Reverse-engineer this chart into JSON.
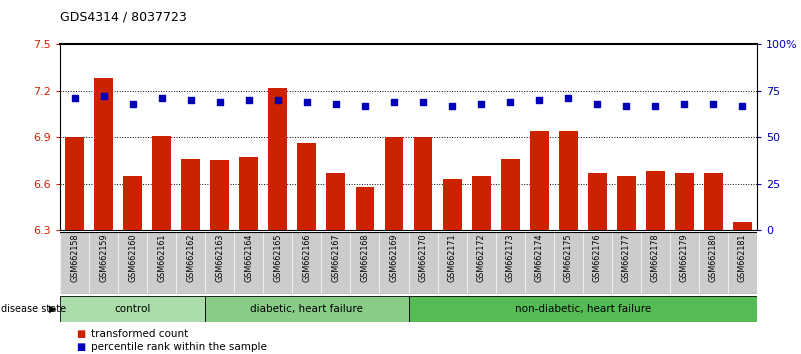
{
  "title": "GDS4314 / 8037723",
  "samples": [
    "GSM662158",
    "GSM662159",
    "GSM662160",
    "GSM662161",
    "GSM662162",
    "GSM662163",
    "GSM662164",
    "GSM662165",
    "GSM662166",
    "GSM662167",
    "GSM662168",
    "GSM662169",
    "GSM662170",
    "GSM662171",
    "GSM662172",
    "GSM662173",
    "GSM662174",
    "GSM662175",
    "GSM662176",
    "GSM662177",
    "GSM662178",
    "GSM662179",
    "GSM662180",
    "GSM662181"
  ],
  "bar_values": [
    6.9,
    7.28,
    6.65,
    6.91,
    6.76,
    6.75,
    6.77,
    7.22,
    6.86,
    6.67,
    6.58,
    6.9,
    6.9,
    6.63,
    6.65,
    6.76,
    6.94,
    6.94,
    6.67,
    6.65,
    6.68,
    6.67,
    6.67,
    6.35
  ],
  "percentile_values": [
    71,
    72,
    68,
    71,
    70,
    69,
    70,
    70,
    69,
    68,
    67,
    69,
    69,
    67,
    68,
    69,
    70,
    71,
    68,
    67,
    67,
    68,
    68,
    67
  ],
  "bar_color": "#cc2200",
  "dot_color": "#0000bb",
  "ylim_left": [
    6.3,
    7.5
  ],
  "ylim_right": [
    0,
    100
  ],
  "yticks_left": [
    6.3,
    6.6,
    6.9,
    7.2,
    7.5
  ],
  "ytick_labels_left": [
    "6.3",
    "6.6",
    "6.9",
    "7.2",
    "7.5"
  ],
  "yticks_right": [
    0,
    25,
    50,
    75,
    100
  ],
  "ytick_labels_right": [
    "0",
    "25",
    "50",
    "75",
    "100%"
  ],
  "hlines": [
    6.6,
    6.9,
    7.2
  ],
  "group_boundaries": [
    0,
    5,
    12,
    24
  ],
  "group_labels": [
    "control",
    "diabetic, heart failure",
    "non-diabetic, heart failure"
  ],
  "group_colors": [
    "#aaddaa",
    "#88cc88",
    "#55bb55"
  ],
  "disease_state_label": "disease state",
  "legend_items": [
    {
      "color": "#cc2200",
      "label": "transformed count"
    },
    {
      "color": "#0000bb",
      "label": "percentile rank within the sample"
    }
  ],
  "ticklabel_bg": "#cccccc"
}
